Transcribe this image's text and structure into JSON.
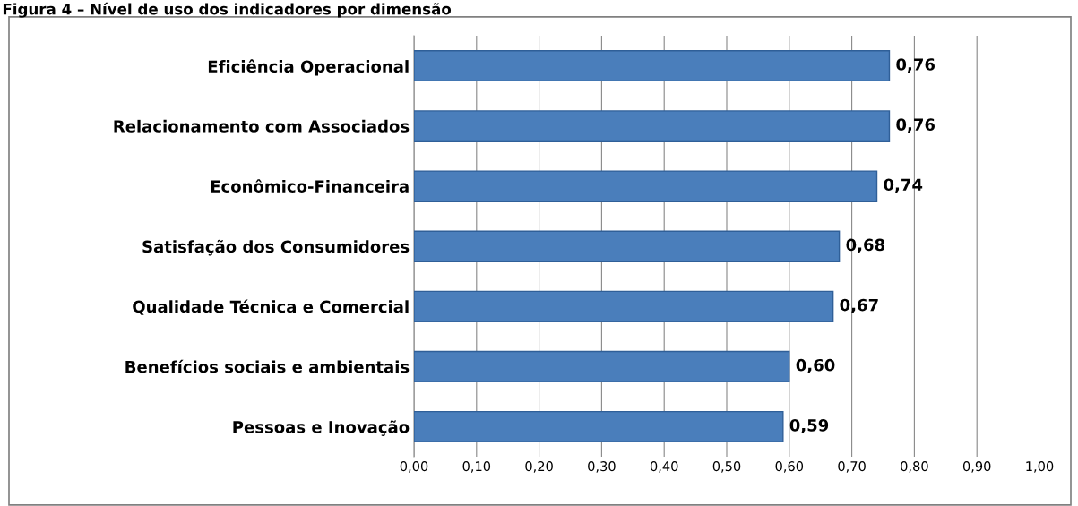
{
  "chart_data": {
    "type": "bar",
    "orientation": "horizontal",
    "title": "Figura 4 – Nível de uso dos indicadores por dimensão",
    "categories": [
      "Eficiência Operacional",
      "Relacionamento com Associados",
      "Econômico-Financeira",
      "Satisfação dos Consumidores",
      "Qualidade Técnica e Comercial",
      "Benefícios sociais e ambientais",
      "Pessoas e Inovação"
    ],
    "values": [
      0.76,
      0.76,
      0.74,
      0.68,
      0.67,
      0.6,
      0.59
    ],
    "value_labels": [
      "0,76",
      "0,76",
      "0,74",
      "0,68",
      "0,67",
      "0,60",
      "0,59"
    ],
    "color": "#4a7ebb",
    "xlim": [
      0,
      1
    ],
    "xticks": [
      {
        "value": 0,
        "label": "0,00"
      },
      {
        "value": 0.1,
        "label": "0,10"
      },
      {
        "value": 0.2,
        "label": "0,20"
      },
      {
        "value": 0.3,
        "label": "0,30"
      },
      {
        "value": 0.4,
        "label": "0,40"
      },
      {
        "value": 0.5,
        "label": "0,50"
      },
      {
        "value": 0.6,
        "label": "0,60"
      },
      {
        "value": 0.7,
        "label": "0,70"
      },
      {
        "value": 0.8,
        "label": "0,80"
      },
      {
        "value": 0.9,
        "label": "0,90"
      },
      {
        "value": 1,
        "label": "1,00"
      }
    ],
    "grid": "x",
    "legend": false
  }
}
